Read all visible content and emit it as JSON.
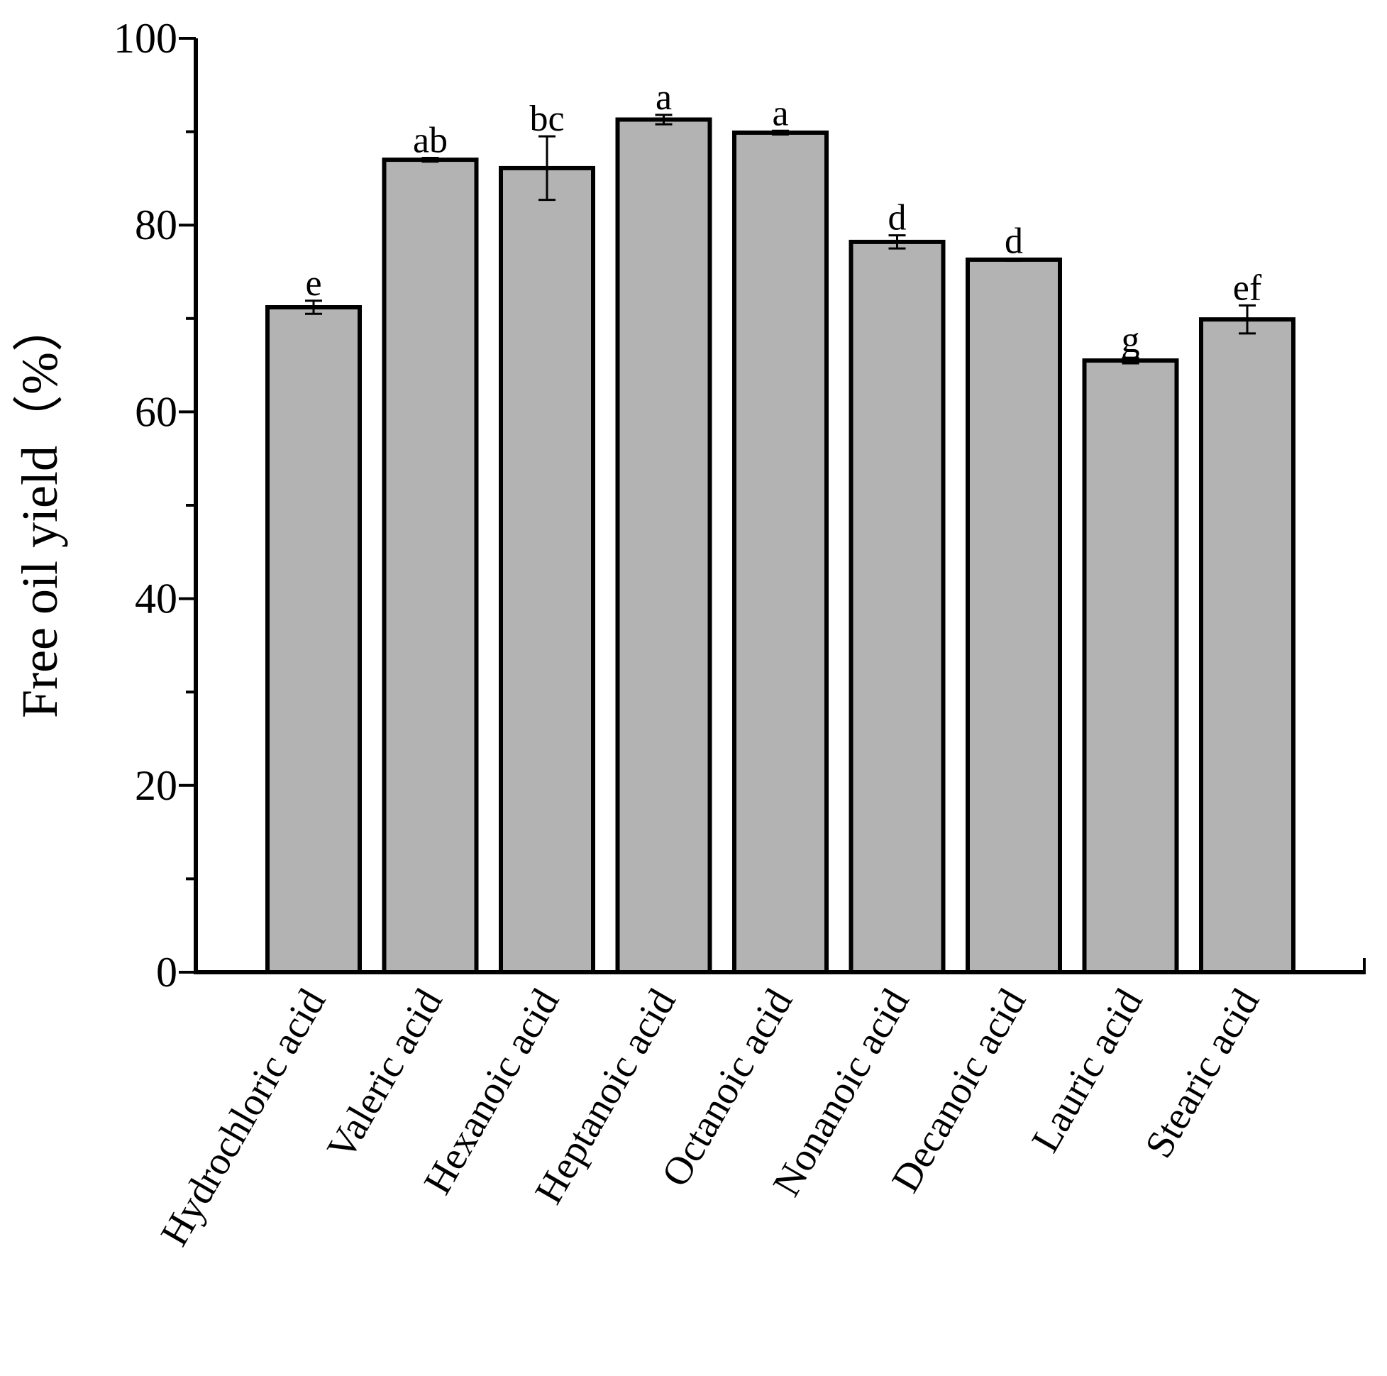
{
  "chart_data": {
    "type": "bar",
    "title": "",
    "xlabel": "",
    "ylabel": "Free oil yield（%）",
    "ylim": [
      0,
      100
    ],
    "yticks": [
      "0",
      "20",
      "40",
      "60",
      "80",
      "100"
    ],
    "grid": false,
    "legend": "none",
    "bar_color": "#b3b3b3",
    "edge_color": "#000000",
    "categories": [
      "Hydrochloric acid",
      "Valeric acid",
      "Hexanoic acid",
      "Heptanoic acid",
      "Octanoic acid",
      "Nonanoic acid",
      "Decanoic acid",
      "Lauric acid",
      "Stearic acid"
    ],
    "values": [
      71.2,
      87.0,
      86.1,
      91.3,
      89.9,
      78.2,
      76.3,
      65.5,
      69.9
    ],
    "errors": [
      0.7,
      0.2,
      3.4,
      0.5,
      0.2,
      0.7,
      0.1,
      0.3,
      1.5
    ],
    "significance": [
      "e",
      "ab",
      "bc",
      "a",
      "a",
      "d",
      "d",
      "g",
      "ef"
    ]
  }
}
